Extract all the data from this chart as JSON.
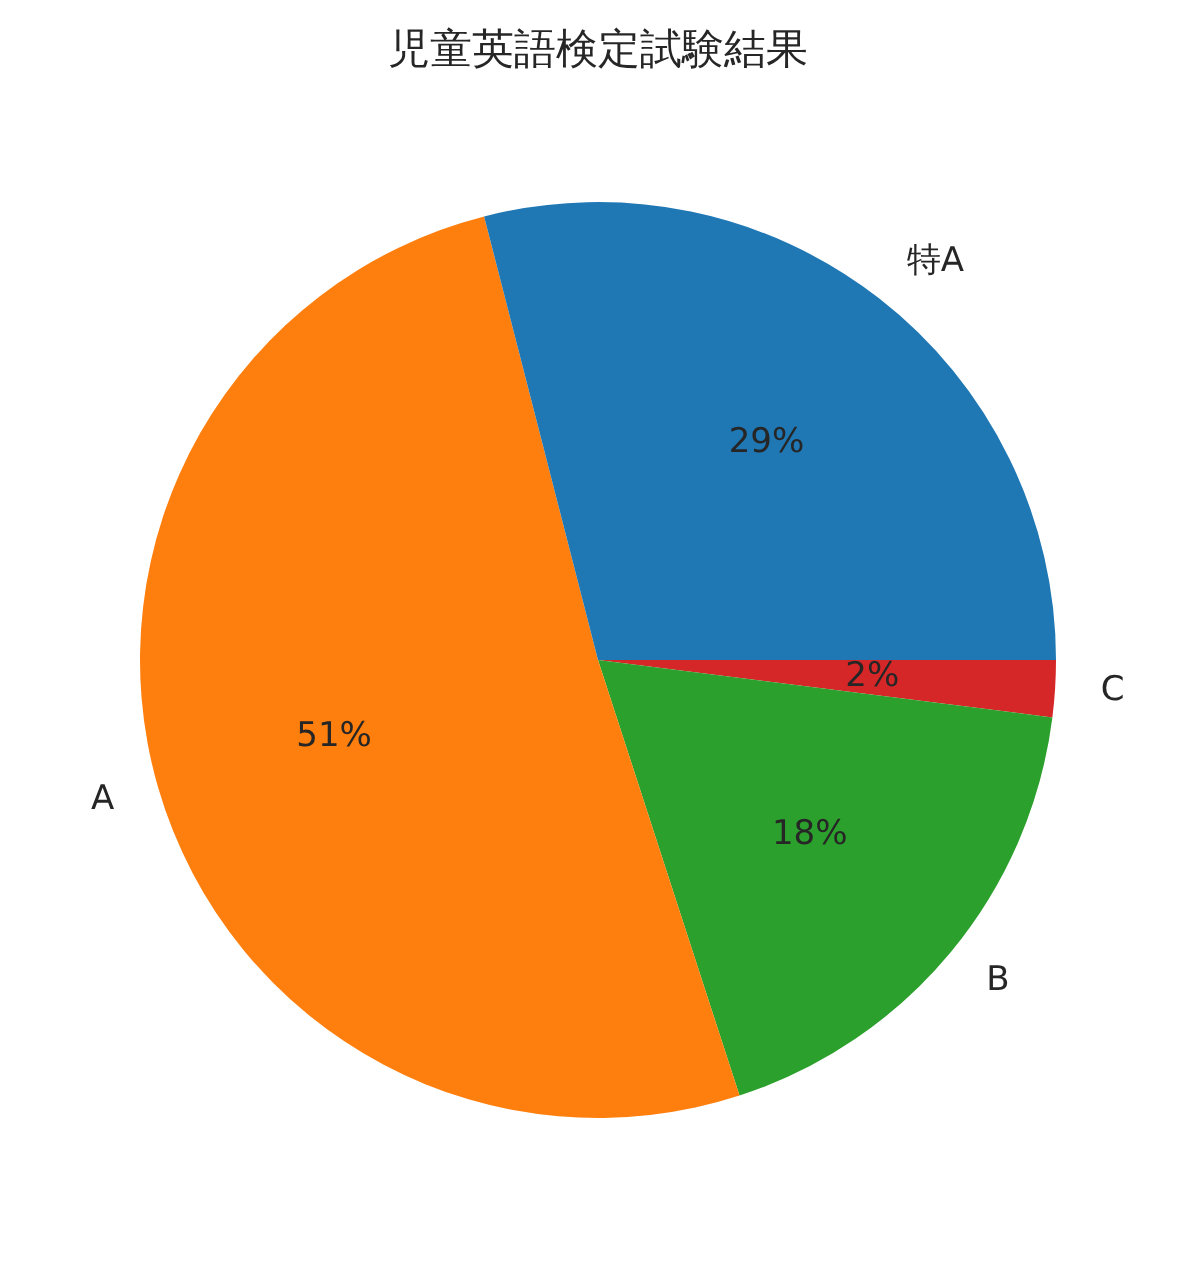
{
  "chart_data": {
    "type": "pie",
    "title": "児童英語検定試験結果",
    "categories": [
      "特A",
      "A",
      "B",
      "C"
    ],
    "values": [
      29,
      51,
      18,
      2
    ],
    "colors": [
      "#1f77b4",
      "#ff7f0e",
      "#2ca02c",
      "#d62728"
    ],
    "value_labels": [
      "29%",
      "51%",
      "18%",
      "2%"
    ]
  }
}
